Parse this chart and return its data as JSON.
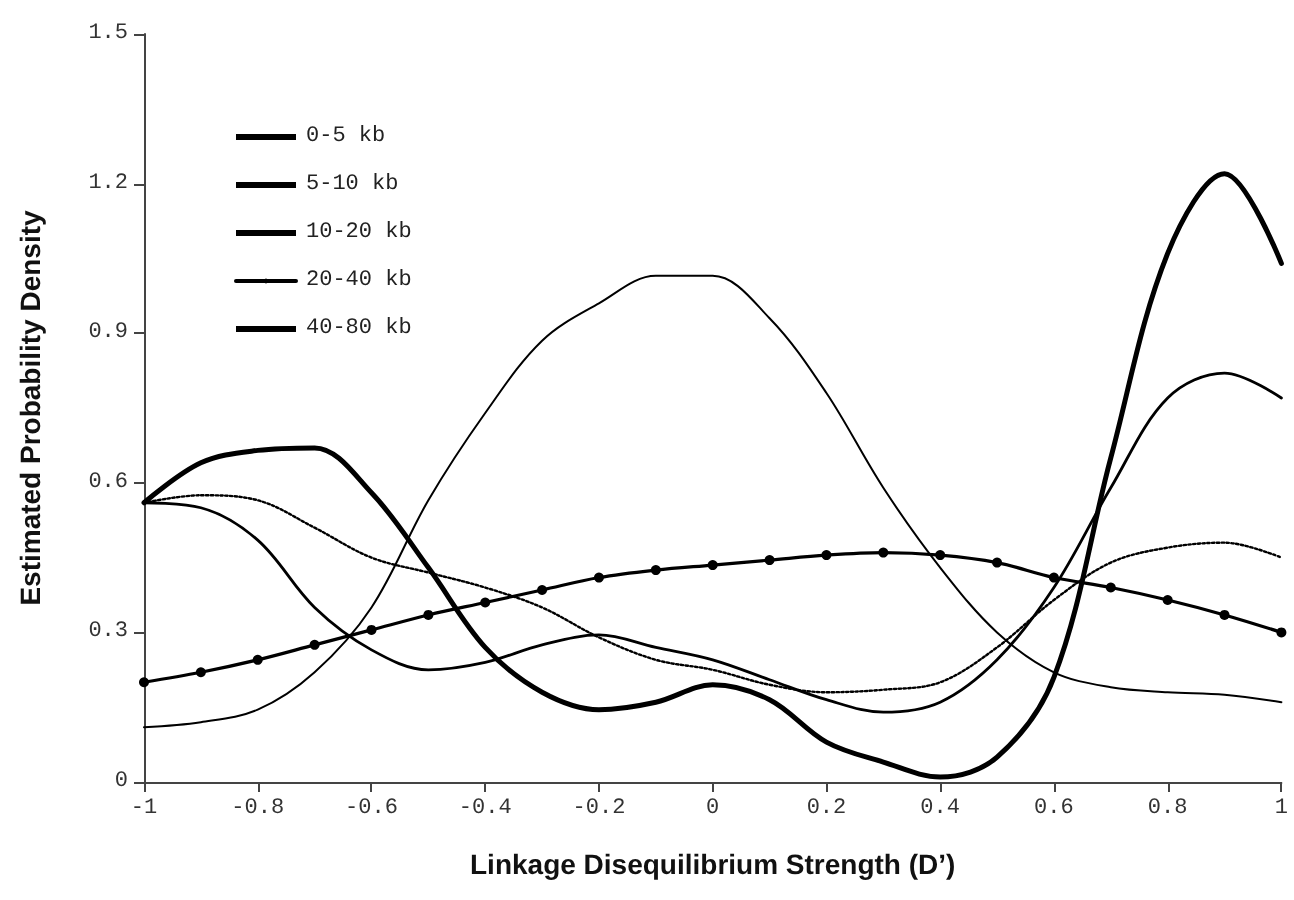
{
  "chart_data": {
    "type": "line",
    "xlabel": "Linkage Disequilibrium Strength (D’)",
    "ylabel": "Estimated Probability Density",
    "x": [
      -1,
      -0.9,
      -0.8,
      -0.7,
      -0.6,
      -0.5,
      -0.4,
      -0.3,
      -0.2,
      -0.1,
      0,
      0.1,
      0.2,
      0.3,
      0.4,
      0.5,
      0.6,
      0.7,
      0.8,
      0.9,
      1
    ],
    "series": [
      {
        "name": "0-5 kb",
        "color": "#000000",
        "marker": "none",
        "line_style": "solid",
        "values": [
          0.56,
          0.64,
          0.665,
          0.67,
          0.58,
          0.43,
          0.27,
          0.18,
          0.145,
          0.16,
          0.195,
          0.165,
          0.08,
          0.04,
          0.01,
          0.05,
          0.21,
          0.65,
          1.06,
          1.22,
          1.04
        ]
      },
      {
        "name": "5-10 kb",
        "color": "#000000",
        "marker": "none",
        "line_style": "solid",
        "values": [
          0.56,
          0.55,
          0.485,
          0.35,
          0.265,
          0.225,
          0.24,
          0.275,
          0.295,
          0.27,
          0.245,
          0.205,
          0.165,
          0.14,
          0.16,
          0.245,
          0.39,
          0.59,
          0.77,
          0.82,
          0.77
        ]
      },
      {
        "name": "10-20 kb",
        "color": "#000000",
        "marker": "none",
        "line_style": "dotted",
        "values": [
          0.56,
          0.575,
          0.565,
          0.51,
          0.45,
          0.42,
          0.39,
          0.35,
          0.29,
          0.245,
          0.225,
          0.195,
          0.18,
          0.185,
          0.2,
          0.27,
          0.365,
          0.44,
          0.47,
          0.48,
          0.45
        ]
      },
      {
        "name": "20-40 kb",
        "color": "#000000",
        "marker": "circle",
        "line_style": "solid",
        "values": [
          0.2,
          0.22,
          0.245,
          0.275,
          0.305,
          0.335,
          0.36,
          0.385,
          0.41,
          0.425,
          0.435,
          0.445,
          0.455,
          0.46,
          0.455,
          0.44,
          0.41,
          0.39,
          0.365,
          0.335,
          0.3
        ]
      },
      {
        "name": "40-80 kb",
        "color": "#000000",
        "marker": "none",
        "line_style": "solid",
        "values": [
          0.11,
          0.12,
          0.145,
          0.22,
          0.35,
          0.565,
          0.74,
          0.885,
          0.96,
          1.015,
          1.015,
          0.93,
          0.78,
          0.59,
          0.43,
          0.3,
          0.22,
          0.19,
          0.18,
          0.175,
          0.16
        ]
      }
    ],
    "xlim": [
      -1,
      1
    ],
    "xticks": [
      -1,
      -0.8,
      -0.6,
      -0.4,
      -0.2,
      0,
      0.2,
      0.4,
      0.6,
      0.8,
      1
    ],
    "ylim": [
      0,
      1.5
    ],
    "yticks": [
      0,
      0.3,
      0.6,
      0.9,
      1.2,
      1.5
    ],
    "grid": false,
    "legend": "top left"
  }
}
